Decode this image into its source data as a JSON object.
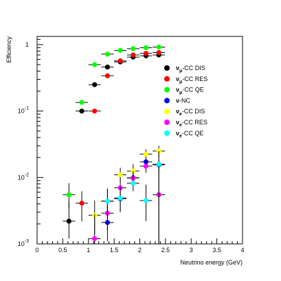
{
  "chart_data": {
    "type": "scatter",
    "title": "",
    "xlabel": "Neutrino energy (GeV)",
    "ylabel": "Efficiency",
    "xlim": [
      0,
      4
    ],
    "ylim": [
      0.001,
      1.2
    ],
    "yscale": "log",
    "grid": false,
    "legend_position": "right",
    "x_ticks": [
      {
        "value": 0,
        "label": "0"
      },
      {
        "value": 0.5,
        "label": "0.5"
      },
      {
        "value": 1,
        "label": "1"
      },
      {
        "value": 1.5,
        "label": "1.5"
      },
      {
        "value": 2,
        "label": "2"
      },
      {
        "value": 2.5,
        "label": "2.5"
      },
      {
        "value": 3,
        "label": "3"
      },
      {
        "value": 3.5,
        "label": "3.5"
      },
      {
        "value": 4,
        "label": "4"
      }
    ],
    "y_ticks": [
      {
        "value": 0.001,
        "base": "10",
        "exp": "-3"
      },
      {
        "value": 0.01,
        "base": "10",
        "exp": "-2"
      },
      {
        "value": 0.1,
        "base": "10",
        "exp": "-1"
      },
      {
        "value": 1,
        "base": "1",
        "exp": ""
      }
    ],
    "series": [
      {
        "name": "νμ-CC DIS",
        "main": "ν",
        "sub": "μ",
        "rest": "-CC DIS",
        "color": "#000000",
        "points": [
          {
            "x": 0.62,
            "y": 0.0022,
            "xerr": 0.12,
            "ylo": 0.0012,
            "yhi": 0.0042
          },
          {
            "x": 0.87,
            "y": 0.1,
            "xerr": 0.12,
            "ylo": 0.1,
            "yhi": 0.1
          },
          {
            "x": 1.12,
            "y": 0.25,
            "xerr": 0.12,
            "ylo": 0.25,
            "yhi": 0.25
          },
          {
            "x": 1.37,
            "y": 0.46,
            "xerr": 0.12,
            "ylo": 0.46,
            "yhi": 0.46
          },
          {
            "x": 1.62,
            "y": 0.55,
            "xerr": 0.12,
            "ylo": 0.55,
            "yhi": 0.55
          },
          {
            "x": 1.87,
            "y": 0.65,
            "xerr": 0.12,
            "ylo": 0.65,
            "yhi": 0.65
          },
          {
            "x": 2.12,
            "y": 0.68,
            "xerr": 0.12,
            "ylo": 0.68,
            "yhi": 0.68
          },
          {
            "x": 2.37,
            "y": 0.7,
            "xerr": 0.12,
            "ylo": 0.7,
            "yhi": 0.7
          }
        ]
      },
      {
        "name": "νμ-CC RES",
        "main": "ν",
        "sub": "μ",
        "rest": "-CC RES",
        "color": "#ff0000",
        "points": [
          {
            "x": 0.87,
            "y": 0.0041,
            "xerr": 0.12,
            "ylo": 0.0022,
            "yhi": 0.0062
          },
          {
            "x": 1.12,
            "y": 0.1,
            "xerr": 0.12,
            "ylo": 0.1,
            "yhi": 0.1
          },
          {
            "x": 1.37,
            "y": 0.34,
            "xerr": 0.12,
            "ylo": 0.34,
            "yhi": 0.34
          },
          {
            "x": 1.62,
            "y": 0.57,
            "xerr": 0.12,
            "ylo": 0.57,
            "yhi": 0.57
          },
          {
            "x": 1.87,
            "y": 0.7,
            "xerr": 0.12,
            "ylo": 0.7,
            "yhi": 0.7
          },
          {
            "x": 2.12,
            "y": 0.74,
            "xerr": 0.12,
            "ylo": 0.74,
            "yhi": 0.74
          },
          {
            "x": 2.37,
            "y": 0.76,
            "xerr": 0.12,
            "ylo": 0.76,
            "yhi": 0.76
          }
        ]
      },
      {
        "name": "νμ-CC QE",
        "main": "ν",
        "sub": "μ",
        "rest": "-CC QE",
        "color": "#00ff00",
        "points": [
          {
            "x": 0.62,
            "y": 0.0055,
            "xerr": 0.12,
            "ylo": 0.0034,
            "yhi": 0.0082
          },
          {
            "x": 0.87,
            "y": 0.135,
            "xerr": 0.12,
            "ylo": 0.135,
            "yhi": 0.135
          },
          {
            "x": 1.12,
            "y": 0.5,
            "xerr": 0.12,
            "ylo": 0.5,
            "yhi": 0.5
          },
          {
            "x": 1.37,
            "y": 0.72,
            "xerr": 0.12,
            "ylo": 0.72,
            "yhi": 0.72
          },
          {
            "x": 1.62,
            "y": 0.82,
            "xerr": 0.12,
            "ylo": 0.82,
            "yhi": 0.82
          },
          {
            "x": 1.87,
            "y": 0.87,
            "xerr": 0.12,
            "ylo": 0.87,
            "yhi": 0.87
          },
          {
            "x": 2.12,
            "y": 0.9,
            "xerr": 0.12,
            "ylo": 0.9,
            "yhi": 0.9
          },
          {
            "x": 2.37,
            "y": 0.92,
            "xerr": 0.12,
            "ylo": 0.92,
            "yhi": 0.92
          }
        ]
      },
      {
        "name": "ν-NC",
        "main": "ν",
        "sub": "",
        "rest": "-NC",
        "color": "#0000ff",
        "points": [
          {
            "x": 1.37,
            "y": 0.0021,
            "xerr": 0.12,
            "ylo": 0.0011,
            "yhi": 0.004
          },
          {
            "x": 1.62,
            "y": 0.0048,
            "xerr": 0.12,
            "ylo": 0.003,
            "yhi": 0.0072
          },
          {
            "x": 1.87,
            "y": 0.0099,
            "xerr": 0.12,
            "ylo": 0.0078,
            "yhi": 0.0125
          },
          {
            "x": 2.12,
            "y": 0.0172,
            "xerr": 0.12,
            "ylo": 0.0145,
            "yhi": 0.0205
          },
          {
            "x": 2.37,
            "y": 0.0155,
            "xerr": 0.12,
            "ylo": 0.013,
            "yhi": 0.0185
          }
        ]
      },
      {
        "name": "νe-CC DIS",
        "main": "ν",
        "sub": "e",
        "rest": "-CC DIS",
        "color": "#ffff00",
        "points": [
          {
            "x": 1.12,
            "y": 0.0027,
            "xerr": 0.12,
            "ylo": 0.0014,
            "yhi": 0.0045
          },
          {
            "x": 1.37,
            "y": 0.0044,
            "xerr": 0.12,
            "ylo": 0.0025,
            "yhi": 0.0067
          },
          {
            "x": 1.62,
            "y": 0.011,
            "xerr": 0.12,
            "ylo": 0.0085,
            "yhi": 0.014
          },
          {
            "x": 1.87,
            "y": 0.0125,
            "xerr": 0.12,
            "ylo": 0.0095,
            "yhi": 0.0158
          },
          {
            "x": 2.12,
            "y": 0.0225,
            "xerr": 0.12,
            "ylo": 0.0185,
            "yhi": 0.0265
          },
          {
            "x": 2.37,
            "y": 0.025,
            "xerr": 0.12,
            "ylo": 0.02,
            "yhi": 0.03
          }
        ]
      },
      {
        "name": "νe-CC RES",
        "main": "ν",
        "sub": "e",
        "rest": "-CC RES",
        "color": "#ff00ff",
        "points": [
          {
            "x": 1.12,
            "y": 0.0012,
            "xerr": 0.12,
            "ylo": 0.001,
            "yhi": 0.0028
          },
          {
            "x": 1.37,
            "y": 0.0029,
            "xerr": 0.12,
            "ylo": 0.0016,
            "yhi": 0.0049
          },
          {
            "x": 1.62,
            "y": 0.007,
            "xerr": 0.12,
            "ylo": 0.0046,
            "yhi": 0.0098
          },
          {
            "x": 1.87,
            "y": 0.0098,
            "xerr": 0.12,
            "ylo": 0.0075,
            "yhi": 0.0125
          },
          {
            "x": 2.12,
            "y": 0.0148,
            "xerr": 0.12,
            "ylo": 0.0118,
            "yhi": 0.0182
          },
          {
            "x": 2.37,
            "y": 0.0055,
            "xerr": 0.12,
            "ylo": 0.001,
            "yhi": 0.016
          }
        ]
      },
      {
        "name": "νe-CC QE",
        "main": "ν",
        "sub": "e",
        "rest": "-CC QE",
        "color": "#00ffff",
        "points": [
          {
            "x": 1.37,
            "y": 0.0044,
            "xerr": 0.12,
            "ylo": 0.0025,
            "yhi": 0.0068
          },
          {
            "x": 1.62,
            "y": 0.0049,
            "xerr": 0.12,
            "ylo": 0.0031,
            "yhi": 0.0072
          },
          {
            "x": 1.87,
            "y": 0.0082,
            "xerr": 0.12,
            "ylo": 0.0062,
            "yhi": 0.0108
          },
          {
            "x": 2.12,
            "y": 0.0045,
            "xerr": 0.12,
            "ylo": 0.0022,
            "yhi": 0.0078
          },
          {
            "x": 2.37,
            "y": 0.0158,
            "xerr": 0.12,
            "ylo": 0.001,
            "yhi": 0.025
          }
        ]
      }
    ]
  }
}
